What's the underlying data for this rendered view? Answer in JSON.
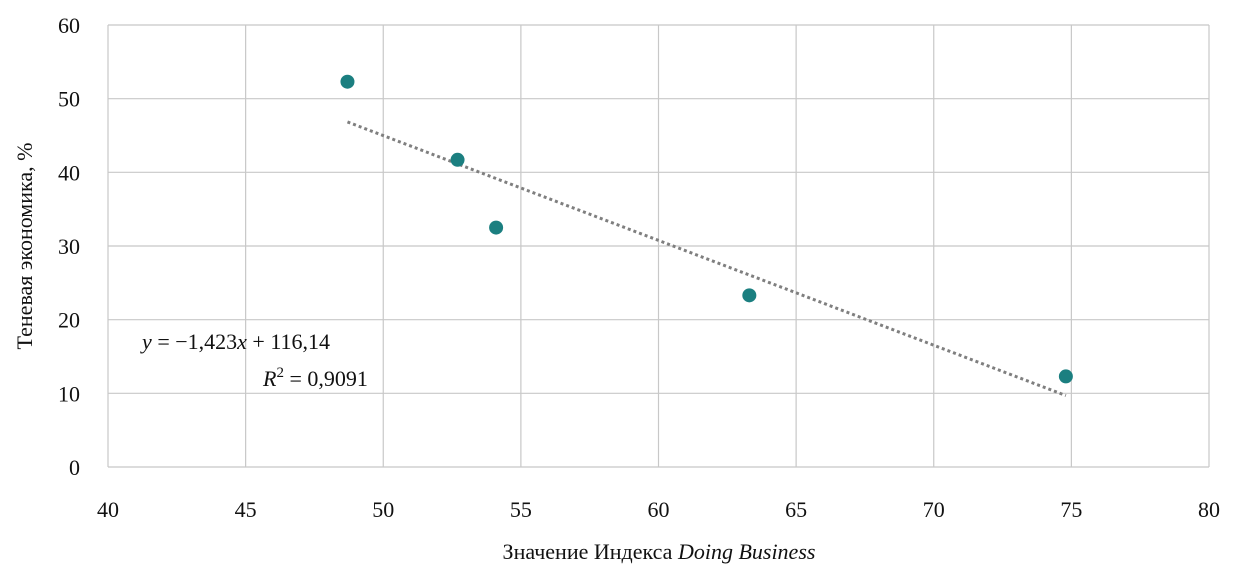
{
  "chart_data": {
    "type": "scatter",
    "xlim": [
      40,
      80
    ],
    "ylim": [
      0,
      60
    ],
    "x_ticks": [
      "40",
      "45",
      "50",
      "55",
      "60",
      "65",
      "70",
      "75",
      "80"
    ],
    "y_ticks": [
      "0",
      "10",
      "20",
      "30",
      "40",
      "50",
      "60"
    ],
    "xlabel": {
      "prefix": "Значение Индекса ",
      "italic": "Doing Business"
    },
    "ylabel": "Теневая экономика, %",
    "grid": true,
    "series": [
      {
        "points": [
          {
            "x": 48.7,
            "y": 52.3
          },
          {
            "x": 52.7,
            "y": 41.7
          },
          {
            "x": 54.1,
            "y": 32.5
          },
          {
            "x": 63.3,
            "y": 23.3
          },
          {
            "x": 74.8,
            "y": 12.3
          }
        ],
        "color": "#1b7f80"
      }
    ],
    "trendline": {
      "slope": -1.423,
      "intercept": 116.14,
      "x_range": [
        48.7,
        74.8
      ],
      "color": "#7f7f7f",
      "style": "dotted"
    },
    "annotation": {
      "equation": {
        "y": "y",
        "mid": " = −1,423",
        "x": "x",
        "rest": " + 116,14"
      },
      "r2": {
        "r": "R",
        "sup": "2",
        "rest": " = 0,9091"
      }
    }
  }
}
